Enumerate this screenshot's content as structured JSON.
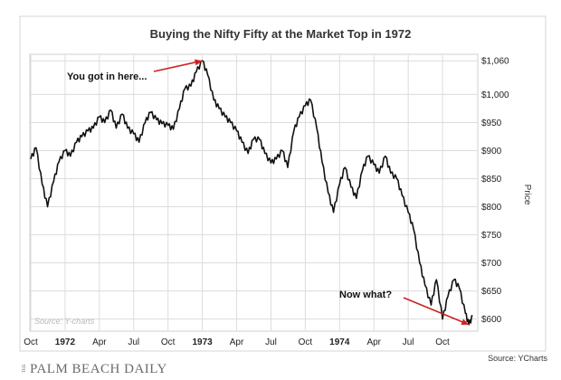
{
  "chart_data": {
    "type": "line",
    "title": "Buying the Nifty Fifty at the Market Top in 1972",
    "ylabel": "Price",
    "ylim": [
      580,
      1070
    ],
    "y_ticks": [
      {
        "value": 600,
        "label": "$600"
      },
      {
        "value": 650,
        "label": "$650"
      },
      {
        "value": 700,
        "label": "$700"
      },
      {
        "value": 750,
        "label": "$750"
      },
      {
        "value": 800,
        "label": "$800"
      },
      {
        "value": 850,
        "label": "$850"
      },
      {
        "value": 900,
        "label": "$900"
      },
      {
        "value": 950,
        "label": "$950"
      },
      {
        "value": 1000,
        "label": "$1,000"
      },
      {
        "value": 1060,
        "label": "$1,060"
      }
    ],
    "x_ticks": [
      {
        "date": "1971-10",
        "label": "Oct",
        "bold": false
      },
      {
        "date": "1972-01",
        "label": "1972",
        "bold": true
      },
      {
        "date": "1972-04",
        "label": "Apr",
        "bold": false
      },
      {
        "date": "1972-07",
        "label": "Jul",
        "bold": false
      },
      {
        "date": "1972-10",
        "label": "Oct",
        "bold": false
      },
      {
        "date": "1973-01",
        "label": "1973",
        "bold": true
      },
      {
        "date": "1973-04",
        "label": "Apr",
        "bold": false
      },
      {
        "date": "1973-07",
        "label": "Jul",
        "bold": false
      },
      {
        "date": "1973-10",
        "label": "Oct",
        "bold": false
      },
      {
        "date": "1974-01",
        "label": "1974",
        "bold": true
      },
      {
        "date": "1974-04",
        "label": "Apr",
        "bold": false
      },
      {
        "date": "1974-07",
        "label": "Jul",
        "bold": false
      },
      {
        "date": "1974-10",
        "label": "Oct",
        "bold": false
      }
    ],
    "xlim": [
      "1971-10",
      "1975-01"
    ],
    "grid": true,
    "series": [
      {
        "color": "#111111",
        "points": [
          [
            "1971-10",
            885
          ],
          [
            "1971-10-15",
            905
          ],
          [
            "1971-11",
            840
          ],
          [
            "1971-11-15",
            800
          ],
          [
            "1971-12",
            845
          ],
          [
            "1971-12-15",
            880
          ],
          [
            "1972-01",
            900
          ],
          [
            "1972-01-15",
            890
          ],
          [
            "1972-02",
            915
          ],
          [
            "1972-02-15",
            925
          ],
          [
            "1972-03",
            935
          ],
          [
            "1972-03-15",
            940
          ],
          [
            "1972-04",
            960
          ],
          [
            "1972-04-15",
            950
          ],
          [
            "1972-05",
            972
          ],
          [
            "1972-05-15",
            940
          ],
          [
            "1972-06",
            965
          ],
          [
            "1972-06-15",
            940
          ],
          [
            "1972-07",
            930
          ],
          [
            "1972-07-15",
            915
          ],
          [
            "1972-08",
            950
          ],
          [
            "1972-08-15",
            968
          ],
          [
            "1972-09",
            955
          ],
          [
            "1972-09-15",
            948
          ],
          [
            "1972-10",
            945
          ],
          [
            "1972-10-15",
            938
          ],
          [
            "1972-11",
            975
          ],
          [
            "1972-11-15",
            1010
          ],
          [
            "1972-12",
            1015
          ],
          [
            "1972-12-15",
            1040
          ],
          [
            "1973-01",
            1060
          ],
          [
            "1973-01-15",
            1035
          ],
          [
            "1973-02",
            990
          ],
          [
            "1973-02-15",
            975
          ],
          [
            "1973-03",
            960
          ],
          [
            "1973-03-15",
            950
          ],
          [
            "1973-04",
            935
          ],
          [
            "1973-04-15",
            915
          ],
          [
            "1973-05",
            895
          ],
          [
            "1973-05-15",
            920
          ],
          [
            "1973-06",
            920
          ],
          [
            "1973-06-15",
            895
          ],
          [
            "1973-07",
            878
          ],
          [
            "1973-07-15",
            885
          ],
          [
            "1973-08",
            900
          ],
          [
            "1973-08-15",
            870
          ],
          [
            "1973-09",
            935
          ],
          [
            "1973-09-15",
            960
          ],
          [
            "1973-10",
            980
          ],
          [
            "1973-10-15",
            990
          ],
          [
            "1973-11",
            940
          ],
          [
            "1973-11-15",
            880
          ],
          [
            "1973-12",
            825
          ],
          [
            "1973-12-15",
            790
          ],
          [
            "1974-01",
            840
          ],
          [
            "1974-01-15",
            870
          ],
          [
            "1974-02",
            835
          ],
          [
            "1974-02-15",
            815
          ],
          [
            "1974-03",
            865
          ],
          [
            "1974-03-15",
            890
          ],
          [
            "1974-04",
            875
          ],
          [
            "1974-04-15",
            860
          ],
          [
            "1974-05",
            890
          ],
          [
            "1974-05-15",
            860
          ],
          [
            "1974-06",
            850
          ],
          [
            "1974-06-15",
            820
          ],
          [
            "1974-07",
            790
          ],
          [
            "1974-07-15",
            760
          ],
          [
            "1974-08",
            700
          ],
          [
            "1974-08-15",
            660
          ],
          [
            "1974-09",
            625
          ],
          [
            "1974-09-15",
            670
          ],
          [
            "1974-10",
            600
          ],
          [
            "1974-10-15",
            640
          ],
          [
            "1974-11",
            670
          ],
          [
            "1974-11-15",
            655
          ],
          [
            "1974-12",
            610
          ],
          [
            "1974-12-10",
            590
          ],
          [
            "1974-12-20",
            605
          ]
        ]
      }
    ],
    "annotations": [
      {
        "text": "You got in here...",
        "arrow_to": [
          "1973-01",
          1060
        ],
        "arrow_color": "#cc2222"
      },
      {
        "text": "Now what?",
        "arrow_to": [
          "1974-12-10",
          590
        ],
        "arrow_color": "#cc2222"
      }
    ],
    "source_inside": "Source: Y-charts",
    "source_outside": "Source: YCharts"
  },
  "brand": {
    "the": "THE",
    "name": "PALM BEACH DAILY"
  }
}
